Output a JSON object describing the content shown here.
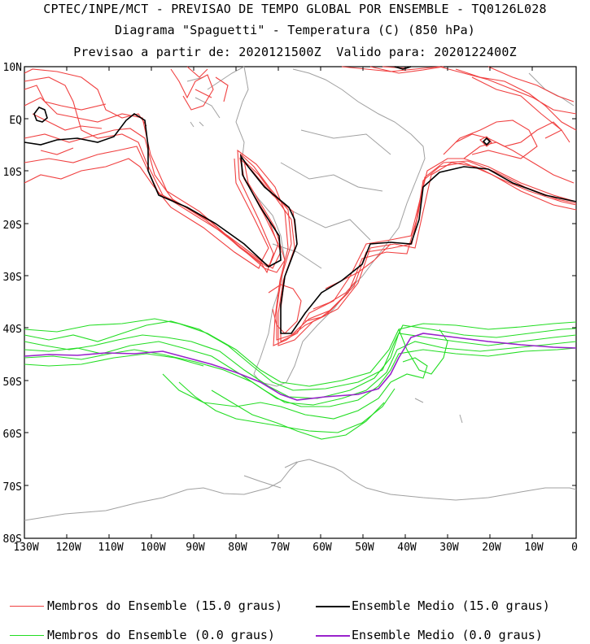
{
  "header": {
    "line1": "CPTEC/INPE/MCT - PREVISAO DE TEMPO GLOBAL POR ENSEMBLE - TQ0126L028",
    "line2": "Diagrama \"Spaguetti\" - Temperatura (C) (850 hPa)",
    "line3": "Previsao a partir de: 2020121500Z  Valido para: 2020122400Z"
  },
  "axes": {
    "lat_labels": [
      "10N",
      "EQ",
      "10S",
      "20S",
      "30S",
      "40S",
      "50S",
      "60S",
      "70S",
      "80S"
    ],
    "lon_labels": [
      "130W",
      "120W",
      "110W",
      "100W",
      "90W",
      "80W",
      "70W",
      "60W",
      "50W",
      "40W",
      "30W",
      "20W",
      "10W",
      "0"
    ]
  },
  "colors": {
    "members_15": "#f04040",
    "mean_15": "#000000",
    "members_0": "#22dd22",
    "mean_0": "#9922cc",
    "coast": "#a0a0a0"
  },
  "legend": {
    "members_15_label": "Membros do Ensemble (15.0 graus)",
    "mean_15_label": "Ensemble Medio (15.0 graus)",
    "members_0_label": "Membros do Ensemble (0.0 graus)",
    "mean_0_label": "Ensemble Medio (0.0 graus)"
  }
}
